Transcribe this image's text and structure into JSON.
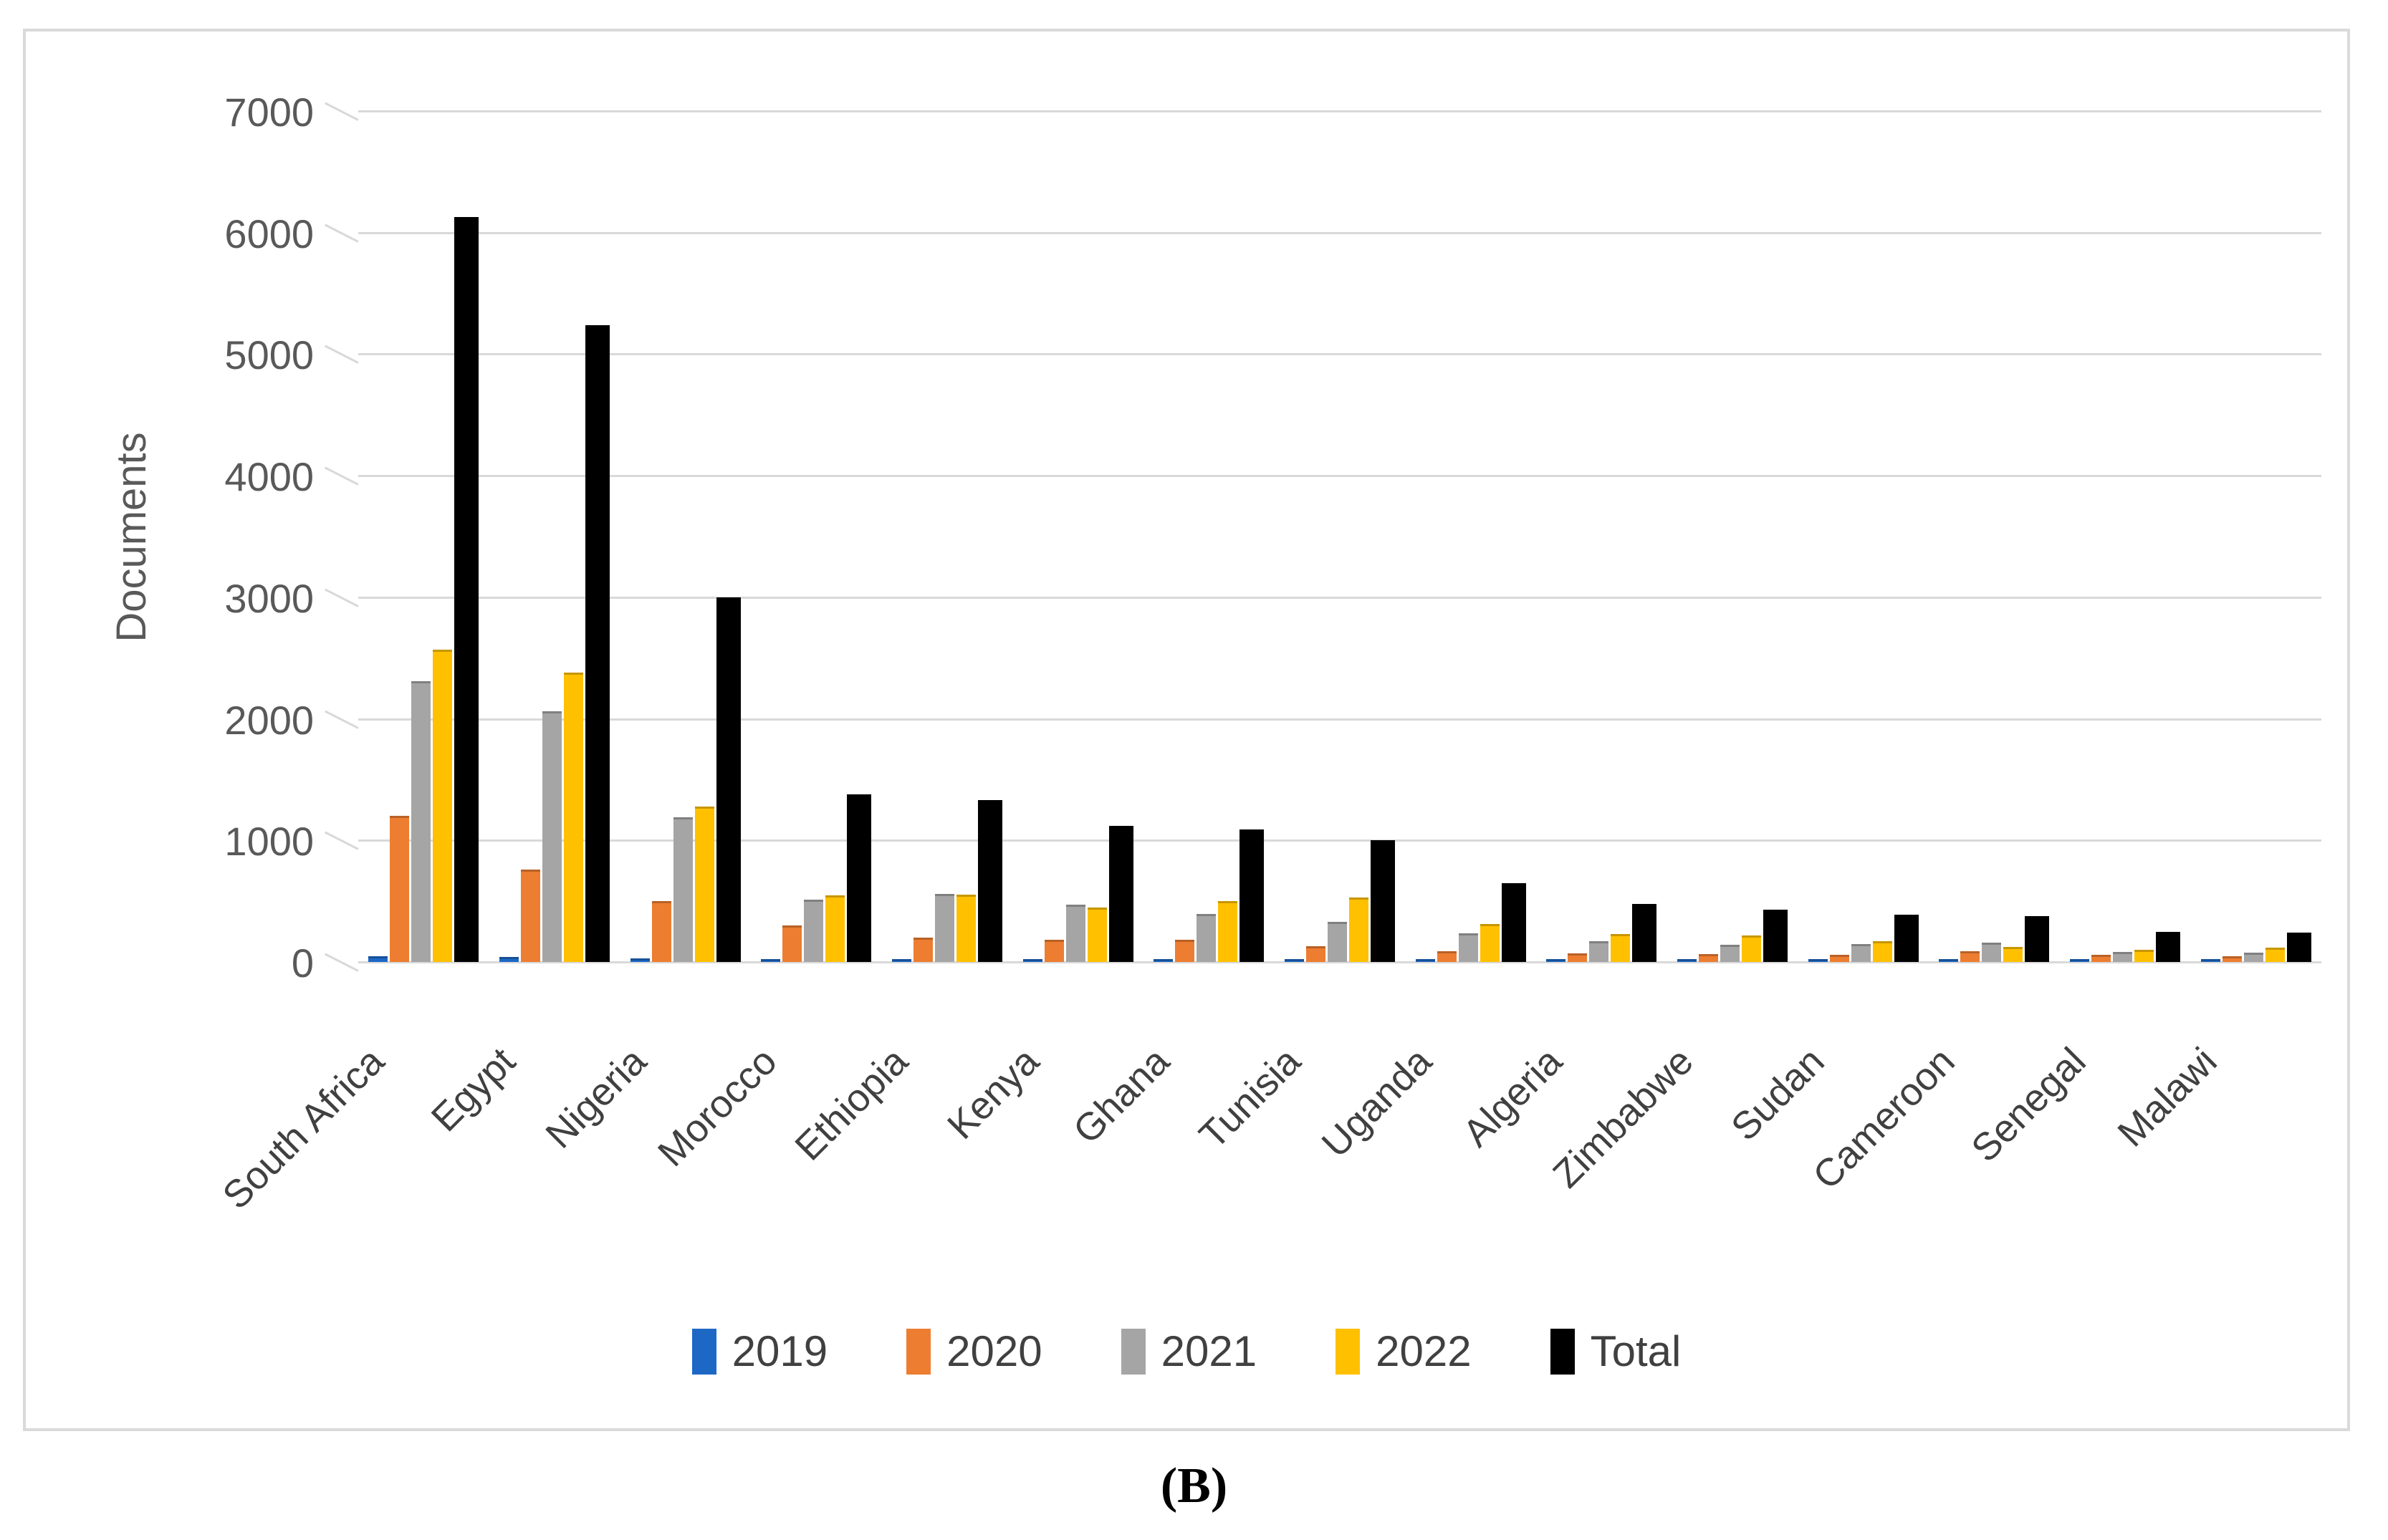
{
  "figure": {
    "caption": "(B)"
  },
  "colors": {
    "figure_border": "#dadada",
    "gridline": "#d9d9d9",
    "axis_text": "#595959",
    "label_text": "#404040"
  },
  "chart_data": {
    "type": "bar",
    "title": "",
    "xlabel": "",
    "ylabel": "Documents",
    "ylim": [
      0,
      7000
    ],
    "yticks": [
      0,
      1000,
      2000,
      3000,
      4000,
      5000,
      6000,
      7000
    ],
    "grid": true,
    "legend_position": "bottom-center",
    "categories": [
      "South Africa",
      "Egypt",
      "Nigeria",
      "Morocco",
      "Ethiopia",
      "Kenya",
      "Ghana",
      "Tunisia",
      "Uganda",
      "Algeria",
      "Zimbabwe",
      "Sudan",
      "Cameroon",
      "Senegal",
      "Malawi"
    ],
    "series": [
      {
        "name": "2019",
        "color": "#1e68c5",
        "values": [
          50,
          40,
          30,
          20,
          15,
          15,
          15,
          10,
          10,
          10,
          8,
          8,
          8,
          5,
          5
        ]
      },
      {
        "name": "2020",
        "color": "#ed7d31",
        "values": [
          1200,
          760,
          500,
          300,
          200,
          185,
          180,
          130,
          90,
          70,
          62,
          60,
          90,
          60,
          45
        ]
      },
      {
        "name": "2021",
        "color": "#a5a5a5",
        "values": [
          2310,
          2060,
          1190,
          510,
          560,
          470,
          395,
          330,
          235,
          170,
          140,
          150,
          160,
          85,
          75
        ]
      },
      {
        "name": "2022",
        "color": "#ffc000",
        "values": [
          2570,
          2380,
          1280,
          550,
          555,
          450,
          500,
          530,
          315,
          230,
          220,
          172,
          125,
          100,
          115
        ]
      },
      {
        "name": "Total",
        "color": "#000000",
        "values": [
          6130,
          5240,
          3000,
          1380,
          1330,
          1120,
          1090,
          1000,
          650,
          480,
          430,
          390,
          380,
          250,
          240
        ]
      }
    ]
  }
}
